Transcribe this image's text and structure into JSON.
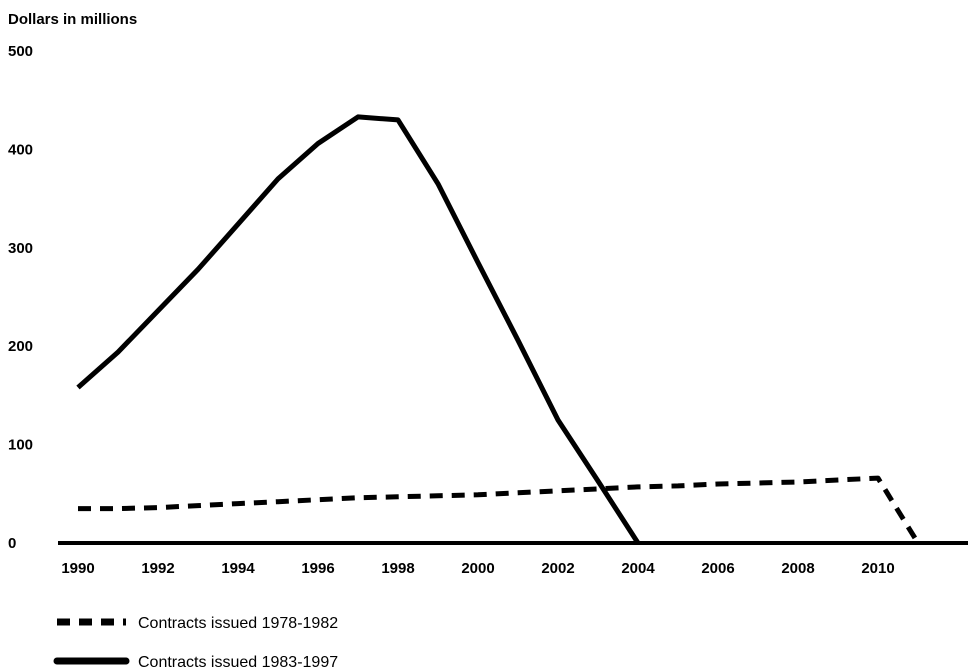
{
  "chart_data": {
    "type": "line",
    "title": "",
    "ylabel": "Dollars in millions",
    "xlabel": "",
    "xlim": [
      1990,
      2012.2
    ],
    "ylim": [
      0,
      500
    ],
    "yticks": [
      "0",
      "100",
      "200",
      "300",
      "400",
      "500"
    ],
    "xticks": [
      "1990",
      "1992",
      "1994",
      "1996",
      "1998",
      "2000",
      "2002",
      "2004",
      "2006",
      "2008",
      "2010"
    ],
    "grid": false,
    "legend_position": "bottom-left",
    "series": [
      {
        "name": "Contracts issued 1978-1982",
        "style": "dashed",
        "x": [
          1990,
          1991,
          1992,
          1993,
          1994,
          1995,
          1996,
          1997,
          1998,
          1999,
          2000,
          2001,
          2002,
          2003,
          2004,
          2005,
          2006,
          2007,
          2008,
          2009,
          2010,
          2011
        ],
        "y": [
          35,
          35,
          36,
          38,
          40,
          42,
          44,
          46,
          47,
          48,
          49,
          51,
          53,
          55,
          57,
          58,
          60,
          61,
          62,
          64,
          66,
          0
        ]
      },
      {
        "name": "Contracts issued 1983-1997",
        "style": "solid",
        "x": [
          1990,
          1991,
          1992,
          1993,
          1994,
          1995,
          1996,
          1997,
          1998,
          1999,
          2000,
          2001,
          2002,
          2003,
          2004
        ],
        "y": [
          158,
          194,
          236,
          278,
          324,
          370,
          406,
          433,
          430,
          365,
          285,
          206,
          125,
          63,
          0
        ]
      }
    ]
  }
}
